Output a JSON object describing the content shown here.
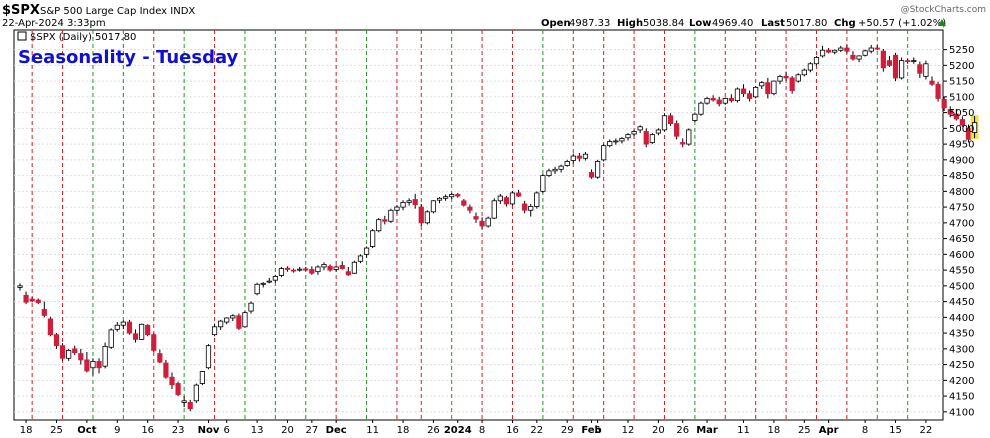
{
  "header": {
    "symbol": "$SPX",
    "name": "S&P 500 Large Cap Index INDX",
    "datetime": "22-Apr-2024 3:33pm",
    "watermark": "@StockCharts.com",
    "open_label": "Open",
    "open": "4987.33",
    "high_label": "High",
    "high": "5038.84",
    "low_label": "Low",
    "low": "4969.40",
    "last_label": "Last",
    "last": "5017.80",
    "chg_label": "Chg",
    "chg": "+50.57 (+1.02%)"
  },
  "legend": {
    "text": "$SPX (Daily) 5017.80"
  },
  "annotation": {
    "text": "Seasonality - Tuesday",
    "color": "#1010d0"
  },
  "colors": {
    "up": "#ffffff",
    "down": "#d21c3c",
    "outline": "#000000",
    "red_line": "#d22020",
    "green_line": "#229922",
    "grid": "#dddddd",
    "last_bar": "#f2e24a"
  },
  "chart_data": {
    "type": "candlestick",
    "title": "Seasonality - Tuesday",
    "ylim": [
      4090,
      5290
    ],
    "y_ticks": [
      4100,
      4150,
      4200,
      4250,
      4300,
      4350,
      4400,
      4450,
      4500,
      4550,
      4600,
      4650,
      4700,
      4750,
      4800,
      4850,
      4900,
      4950,
      5000,
      5050,
      5100,
      5150,
      5200,
      5250
    ],
    "x_ticks": [
      {
        "label": "18",
        "bar": 1
      },
      {
        "label": "25",
        "bar": 6
      },
      {
        "label": "Oct",
        "bar": 11,
        "bold": true
      },
      {
        "label": "9",
        "bar": 16
      },
      {
        "label": "16",
        "bar": 21
      },
      {
        "label": "23",
        "bar": 26
      },
      {
        "label": "Nov",
        "bar": 31,
        "bold": true
      },
      {
        "label": "6",
        "bar": 34
      },
      {
        "label": "13",
        "bar": 39
      },
      {
        "label": "20",
        "bar": 44
      },
      {
        "label": "27",
        "bar": 48
      },
      {
        "label": "Dec",
        "bar": 52,
        "bold": true
      },
      {
        "label": "11",
        "bar": 58
      },
      {
        "label": "18",
        "bar": 63
      },
      {
        "label": "26",
        "bar": 68
      },
      {
        "label": "2024",
        "bar": 72,
        "bold": true
      },
      {
        "label": "8",
        "bar": 76
      },
      {
        "label": "16",
        "bar": 81
      },
      {
        "label": "22",
        "bar": 85
      },
      {
        "label": "29",
        "bar": 90
      },
      {
        "label": "Feb",
        "bar": 94,
        "bold": true
      },
      {
        "label": "5",
        "bar": 95
      },
      {
        "label": "12",
        "bar": 100
      },
      {
        "label": "20",
        "bar": 105
      },
      {
        "label": "26",
        "bar": 109
      },
      {
        "label": "Mar",
        "bar": 113,
        "bold": true
      },
      {
        "label": "11",
        "bar": 119
      },
      {
        "label": "18",
        "bar": 124
      },
      {
        "label": "25",
        "bar": 129
      },
      {
        "label": "Apr",
        "bar": 133,
        "bold": true
      },
      {
        "label": "8",
        "bar": 139
      },
      {
        "label": "15",
        "bar": 144
      },
      {
        "label": "22",
        "bar": 149
      }
    ],
    "tuesday_bars": [
      2,
      7,
      12,
      17,
      22,
      27,
      32,
      37,
      42,
      47,
      52,
      57,
      62,
      66,
      71,
      76,
      81,
      86,
      91,
      96,
      101,
      106,
      111,
      116,
      121,
      126,
      131,
      136,
      141,
      146
    ],
    "tuesday_colors": [
      "r",
      "r",
      "g",
      "g",
      "r",
      "g",
      "r",
      "g",
      "g",
      "g",
      "r",
      "g",
      "r",
      "r",
      "g",
      "r",
      "r",
      "g",
      "r",
      "r",
      "r",
      "r",
      "g",
      "r",
      "r",
      "r",
      "r",
      "r",
      "g",
      "g"
    ],
    "candles": [
      [
        4495,
        4508,
        4485,
        4500
      ],
      [
        4470,
        4482,
        4442,
        4448
      ],
      [
        4458,
        4465,
        4448,
        4452
      ],
      [
        4455,
        4460,
        4442,
        4447
      ],
      [
        4425,
        4450,
        4400,
        4406
      ],
      [
        4395,
        4402,
        4340,
        4345
      ],
      [
        4345,
        4350,
        4300,
        4310
      ],
      [
        4310,
        4318,
        4262,
        4270
      ],
      [
        4270,
        4300,
        4262,
        4295
      ],
      [
        4300,
        4310,
        4280,
        4288
      ],
      [
        4285,
        4300,
        4250,
        4265
      ],
      [
        4265,
        4290,
        4225,
        4230
      ],
      [
        4240,
        4270,
        4215,
        4260
      ],
      [
        4260,
        4270,
        4222,
        4240
      ],
      [
        4245,
        4320,
        4238,
        4308
      ],
      [
        4305,
        4365,
        4300,
        4360
      ],
      [
        4362,
        4385,
        4355,
        4375
      ],
      [
        4375,
        4390,
        4362,
        4385
      ],
      [
        4385,
        4392,
        4345,
        4350
      ],
      [
        4348,
        4362,
        4320,
        4330
      ],
      [
        4330,
        4380,
        4328,
        4378
      ],
      [
        4375,
        4378,
        4340,
        4345
      ],
      [
        4345,
        4350,
        4290,
        4295
      ],
      [
        4285,
        4298,
        4255,
        4258
      ],
      [
        4255,
        4265,
        4205,
        4210
      ],
      [
        4210,
        4225,
        4172,
        4186
      ],
      [
        4190,
        4196,
        4150,
        4155
      ],
      [
        4130,
        4150,
        4115,
        4135
      ],
      [
        4130,
        4138,
        4102,
        4110
      ],
      [
        4135,
        4190,
        4128,
        4185
      ],
      [
        4190,
        4230,
        4185,
        4228
      ],
      [
        4240,
        4315,
        4235,
        4310
      ],
      [
        4345,
        4380,
        4340,
        4370
      ],
      [
        4370,
        4392,
        4360,
        4388
      ],
      [
        4385,
        4400,
        4378,
        4398
      ],
      [
        4398,
        4410,
        4388,
        4405
      ],
      [
        4405,
        4412,
        4360,
        4365
      ],
      [
        4370,
        4420,
        4368,
        4415
      ],
      [
        4420,
        4450,
        4412,
        4445
      ],
      [
        4475,
        4510,
        4470,
        4505
      ],
      [
        4505,
        4512,
        4495,
        4508
      ],
      [
        4512,
        4525,
        4508,
        4515
      ],
      [
        4518,
        4535,
        4510,
        4530
      ],
      [
        4533,
        4560,
        4528,
        4555
      ],
      [
        4556,
        4562,
        4545,
        4552
      ],
      [
        4550,
        4555,
        4542,
        4548
      ],
      [
        4550,
        4560,
        4545,
        4553
      ],
      [
        4554,
        4560,
        4546,
        4550
      ],
      [
        4552,
        4562,
        4535,
        4540
      ],
      [
        4545,
        4565,
        4535,
        4560
      ],
      [
        4560,
        4575,
        4550,
        4568
      ],
      [
        4562,
        4568,
        4545,
        4550
      ],
      [
        4552,
        4565,
        4545,
        4560
      ],
      [
        4565,
        4578,
        4552,
        4555
      ],
      [
        4545,
        4560,
        4532,
        4535
      ],
      [
        4540,
        4580,
        4538,
        4575
      ],
      [
        4578,
        4600,
        4572,
        4595
      ],
      [
        4600,
        4625,
        4590,
        4620
      ],
      [
        4625,
        4680,
        4620,
        4675
      ],
      [
        4675,
        4715,
        4670,
        4710
      ],
      [
        4710,
        4722,
        4695,
        4705
      ],
      [
        4705,
        4745,
        4700,
        4740
      ],
      [
        4740,
        4756,
        4728,
        4750
      ],
      [
        4750,
        4772,
        4740,
        4765
      ],
      [
        4765,
        4778,
        4755,
        4770
      ],
      [
        4774,
        4792,
        4745,
        4758
      ],
      [
        4750,
        4760,
        4690,
        4700
      ],
      [
        4700,
        4740,
        4695,
        4735
      ],
      [
        4735,
        4772,
        4730,
        4770
      ],
      [
        4772,
        4782,
        4762,
        4778
      ],
      [
        4778,
        4790,
        4770,
        4783
      ],
      [
        4783,
        4795,
        4775,
        4790
      ],
      [
        4790,
        4795,
        4780,
        4785
      ],
      [
        4770,
        4776,
        4752,
        4756
      ],
      [
        4750,
        4758,
        4730,
        4740
      ],
      [
        4720,
        4733,
        4700,
        4712
      ],
      [
        4705,
        4718,
        4680,
        4690
      ],
      [
        4690,
        4720,
        4685,
        4715
      ],
      [
        4715,
        4778,
        4712,
        4770
      ],
      [
        4770,
        4792,
        4760,
        4785
      ],
      [
        4780,
        4786,
        4752,
        4760
      ],
      [
        4760,
        4800,
        4755,
        4795
      ],
      [
        4795,
        4805,
        4782,
        4785
      ],
      [
        4760,
        4770,
        4730,
        4740
      ],
      [
        4740,
        4760,
        4720,
        4752
      ],
      [
        4752,
        4800,
        4745,
        4795
      ],
      [
        4800,
        4855,
        4795,
        4850
      ],
      [
        4850,
        4872,
        4845,
        4865
      ],
      [
        4865,
        4878,
        4855,
        4870
      ],
      [
        4870,
        4885,
        4860,
        4880
      ],
      [
        4882,
        4900,
        4878,
        4895
      ],
      [
        4898,
        4920,
        4888,
        4912
      ],
      [
        4912,
        4922,
        4895,
        4905
      ],
      [
        4905,
        4925,
        4898,
        4918
      ],
      [
        4860,
        4870,
        4840,
        4845
      ],
      [
        4845,
        4900,
        4840,
        4895
      ],
      [
        4900,
        4950,
        4895,
        4945
      ],
      [
        4945,
        4965,
        4940,
        4958
      ],
      [
        4958,
        4968,
        4948,
        4960
      ],
      [
        4960,
        4972,
        4952,
        4968
      ],
      [
        4970,
        4985,
        4962,
        4980
      ],
      [
        4982,
        4995,
        4975,
        4990
      ],
      [
        4995,
        5010,
        4985,
        5005
      ],
      [
        4990,
        5000,
        4940,
        4950
      ],
      [
        4955,
        4985,
        4950,
        4980
      ],
      [
        4985,
        5000,
        4978,
        4995
      ],
      [
        4995,
        5048,
        4990,
        5040
      ],
      [
        5040,
        5048,
        5008,
        5015
      ],
      [
        5015,
        5025,
        4965,
        4975
      ],
      [
        4955,
        4968,
        4940,
        4950
      ],
      [
        4950,
        5000,
        4945,
        4995
      ],
      [
        5025,
        5050,
        5020,
        5045
      ],
      [
        5045,
        5085,
        5040,
        5080
      ],
      [
        5080,
        5100,
        5075,
        5095
      ],
      [
        5095,
        5105,
        5085,
        5090
      ],
      [
        5090,
        5100,
        5070,
        5078
      ],
      [
        5080,
        5098,
        5075,
        5095
      ],
      [
        5095,
        5108,
        5082,
        5088
      ],
      [
        5088,
        5130,
        5082,
        5125
      ],
      [
        5125,
        5140,
        5100,
        5110
      ],
      [
        5110,
        5120,
        5085,
        5095
      ],
      [
        5100,
        5135,
        5095,
        5130
      ],
      [
        5135,
        5150,
        5125,
        5145
      ],
      [
        5145,
        5160,
        5095,
        5110
      ],
      [
        5110,
        5152,
        5105,
        5150
      ],
      [
        5150,
        5170,
        5140,
        5165
      ],
      [
        5165,
        5180,
        5150,
        5160
      ],
      [
        5160,
        5166,
        5110,
        5120
      ],
      [
        5150,
        5175,
        5145,
        5170
      ],
      [
        5170,
        5190,
        5165,
        5185
      ],
      [
        5185,
        5210,
        5178,
        5205
      ],
      [
        5205,
        5230,
        5200,
        5225
      ],
      [
        5230,
        5262,
        5225,
        5248
      ],
      [
        5248,
        5255,
        5238,
        5242
      ],
      [
        5242,
        5250,
        5235,
        5248
      ],
      [
        5248,
        5262,
        5242,
        5255
      ],
      [
        5255,
        5265,
        5238,
        5245
      ],
      [
        5232,
        5245,
        5215,
        5220
      ],
      [
        5220,
        5232,
        5210,
        5230
      ],
      [
        5232,
        5250,
        5228,
        5246
      ],
      [
        5245,
        5265,
        5238,
        5255
      ],
      [
        5255,
        5264,
        5248,
        5252
      ],
      [
        5245,
        5252,
        5180,
        5192
      ],
      [
        5215,
        5230,
        5195,
        5200
      ],
      [
        5232,
        5240,
        5150,
        5160
      ],
      [
        5160,
        5225,
        5155,
        5215
      ],
      [
        5215,
        5220,
        5205,
        5212
      ],
      [
        5212,
        5225,
        5205,
        5215
      ],
      [
        5202,
        5212,
        5160,
        5175
      ],
      [
        5165,
        5215,
        5155,
        5205
      ],
      [
        5150,
        5165,
        5135,
        5140
      ],
      [
        5140,
        5148,
        5085,
        5095
      ],
      [
        5092,
        5100,
        5055,
        5065
      ],
      [
        5060,
        5070,
        5035,
        5045
      ],
      [
        5045,
        5062,
        5025,
        5030
      ],
      [
        5028,
        5038,
        5005,
        5010
      ],
      [
        5000,
        5012,
        4955,
        4965
      ],
      [
        4987,
        5039,
        4969,
        5018
      ]
    ]
  }
}
